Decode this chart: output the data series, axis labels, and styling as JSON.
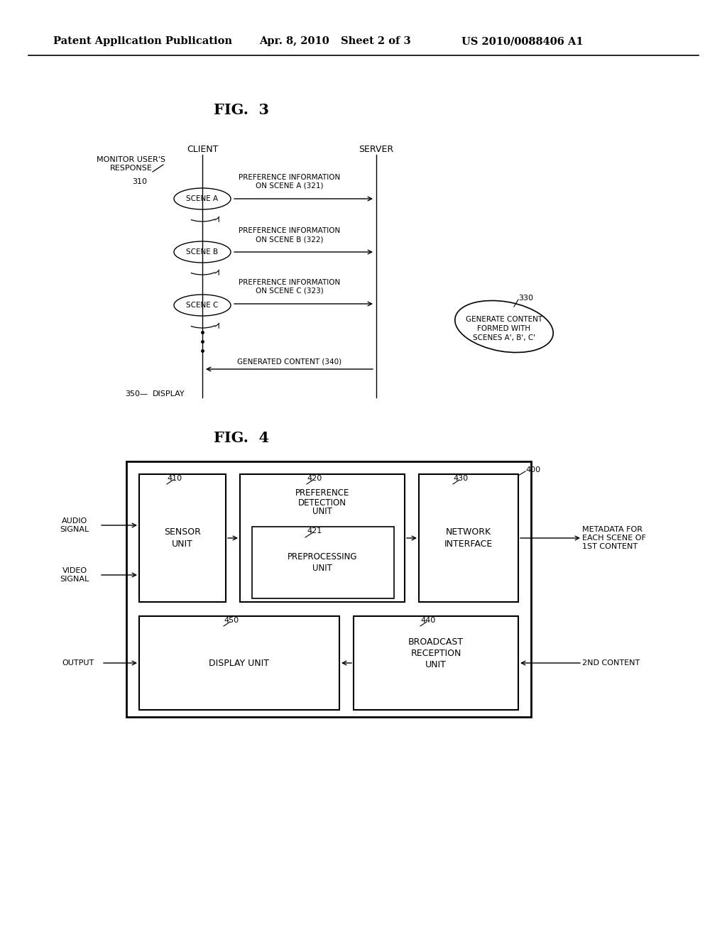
{
  "bg_color": "#ffffff",
  "header_text": "Patent Application Publication",
  "header_date": "Apr. 8, 2010",
  "header_sheet": "Sheet 2 of 3",
  "header_patent": "US 2010/0088406 A1",
  "fig3_title": "FIG.  3",
  "fig4_title": "FIG.  4"
}
